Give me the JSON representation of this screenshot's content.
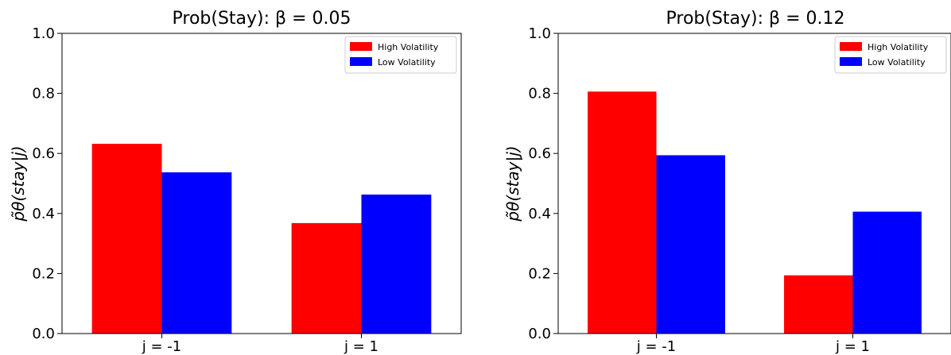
{
  "chart_data": [
    {
      "type": "bar",
      "title": "Prob(Stay): β = 0.05",
      "ylabel": "p̃θ(stay|j)",
      "categories": [
        "j = -1",
        "j = 1"
      ],
      "series": [
        {
          "name": "High Volatility",
          "color": "#ff0000",
          "values": [
            0.632,
            0.368
          ]
        },
        {
          "name": "Low Volatility",
          "color": "#0000ff",
          "values": [
            0.537,
            0.463
          ]
        }
      ],
      "ylim": [
        0,
        1.0
      ],
      "yticks": [
        "0.0",
        "0.2",
        "0.4",
        "0.6",
        "0.8",
        "1.0"
      ],
      "legend_position": "top-right",
      "grid": false
    },
    {
      "type": "bar",
      "title": "Prob(Stay): β = 0.12",
      "ylabel": "p̃θ(stay|j)",
      "categories": [
        "j = -1",
        "j = 1"
      ],
      "series": [
        {
          "name": "High Volatility",
          "color": "#ff0000",
          "values": [
            0.806,
            0.194
          ]
        },
        {
          "name": "Low Volatility",
          "color": "#0000ff",
          "values": [
            0.594,
            0.406
          ]
        }
      ],
      "ylim": [
        0,
        1.0
      ],
      "yticks": [
        "0.0",
        "0.2",
        "0.4",
        "0.6",
        "0.8",
        "1.0"
      ],
      "legend_position": "top-right",
      "grid": false
    }
  ]
}
